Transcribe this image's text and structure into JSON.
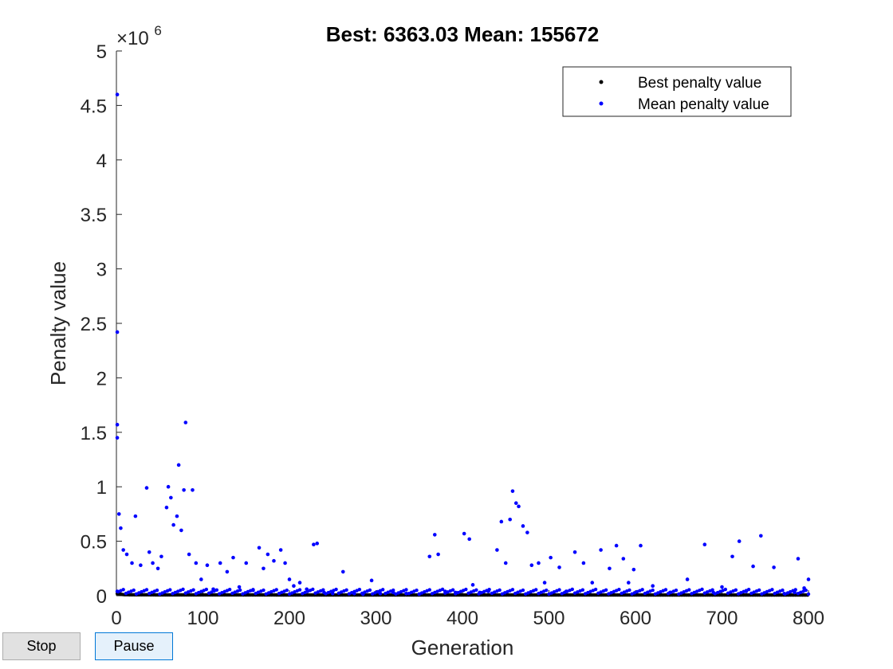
{
  "window": {
    "buttons": {
      "stop_label": "Stop",
      "pause_label": "Pause"
    }
  },
  "chart_data": {
    "type": "scatter",
    "title": "Best: 6363.03 Mean: 155672",
    "xlabel": "Generation",
    "ylabel": "Penalty value",
    "y_exponent_label": "×10",
    "y_exponent_power": "6",
    "xlim": [
      0,
      800
    ],
    "ylim": [
      0,
      5000000
    ],
    "x_ticks": [
      0,
      100,
      200,
      300,
      400,
      500,
      600,
      700,
      800
    ],
    "x_tick_labels": [
      "0",
      "100",
      "200",
      "300",
      "400",
      "500",
      "600",
      "700",
      "800"
    ],
    "y_ticks": [
      0,
      500000,
      1000000,
      1500000,
      2000000,
      2500000,
      3000000,
      3500000,
      4000000,
      4500000,
      5000000
    ],
    "y_tick_labels": [
      "0",
      "0.5",
      "1",
      "1.5",
      "2",
      "2.5",
      "3",
      "3.5",
      "4",
      "4.5",
      "5"
    ],
    "grid": false,
    "legend_position": "top-right",
    "series": [
      {
        "name": "Best penalty value",
        "color": "#000000",
        "x": [
          1,
          4,
          8,
          15,
          30,
          50,
          80,
          120,
          200,
          300,
          400,
          500,
          600,
          700,
          800
        ],
        "y": [
          20000,
          15000,
          10000,
          9000,
          8500,
          8000,
          7800,
          7500,
          7200,
          7000,
          6800,
          6600,
          6500,
          6400,
          6363.03
        ]
      },
      {
        "name": "Mean penalty value",
        "color": "#0000ff",
        "x": [
          1,
          1,
          1,
          1,
          1,
          3,
          5,
          8,
          12,
          18,
          22,
          28,
          35,
          38,
          42,
          48,
          52,
          58,
          60,
          63,
          66,
          70,
          72,
          75,
          78,
          80,
          84,
          88,
          92,
          98,
          105,
          112,
          120,
          128,
          135,
          142,
          150,
          158,
          165,
          170,
          175,
          182,
          190,
          195,
          200,
          205,
          212,
          220,
          228,
          232,
          240,
          250,
          262,
          275,
          285,
          295,
          305,
          320,
          335,
          350,
          362,
          368,
          372,
          380,
          392,
          402,
          408,
          412,
          420,
          430,
          440,
          445,
          450,
          455,
          458,
          462,
          465,
          470,
          475,
          480,
          488,
          495,
          502,
          512,
          520,
          530,
          540,
          550,
          560,
          570,
          578,
          586,
          592,
          598,
          606,
          620,
          640,
          660,
          680,
          690,
          700,
          712,
          720,
          728,
          736,
          745,
          760,
          772,
          784,
          788,
          795,
          800
        ],
        "y": [
          4600000,
          2420000,
          1570000,
          1450000,
          40000,
          750000,
          620000,
          420000,
          380000,
          300000,
          730000,
          280000,
          990000,
          400000,
          300000,
          250000,
          360000,
          810000,
          1000000,
          900000,
          650000,
          730000,
          1200000,
          600000,
          970000,
          1590000,
          380000,
          970000,
          300000,
          150000,
          280000,
          60000,
          300000,
          220000,
          350000,
          80000,
          300000,
          50000,
          440000,
          250000,
          380000,
          320000,
          420000,
          300000,
          150000,
          90000,
          120000,
          60000,
          470000,
          480000,
          30000,
          20000,
          220000,
          20000,
          15000,
          140000,
          20000,
          30000,
          20000,
          15000,
          360000,
          560000,
          380000,
          40000,
          30000,
          570000,
          520000,
          100000,
          30000,
          40000,
          420000,
          680000,
          300000,
          700000,
          960000,
          850000,
          820000,
          640000,
          580000,
          280000,
          300000,
          120000,
          350000,
          260000,
          40000,
          400000,
          300000,
          120000,
          420000,
          250000,
          460000,
          340000,
          120000,
          240000,
          460000,
          90000,
          30000,
          150000,
          470000,
          30000,
          80000,
          360000,
          500000,
          40000,
          270000,
          550000,
          260000,
          20000,
          30000,
          340000,
          70000,
          150000
        ]
      }
    ]
  }
}
